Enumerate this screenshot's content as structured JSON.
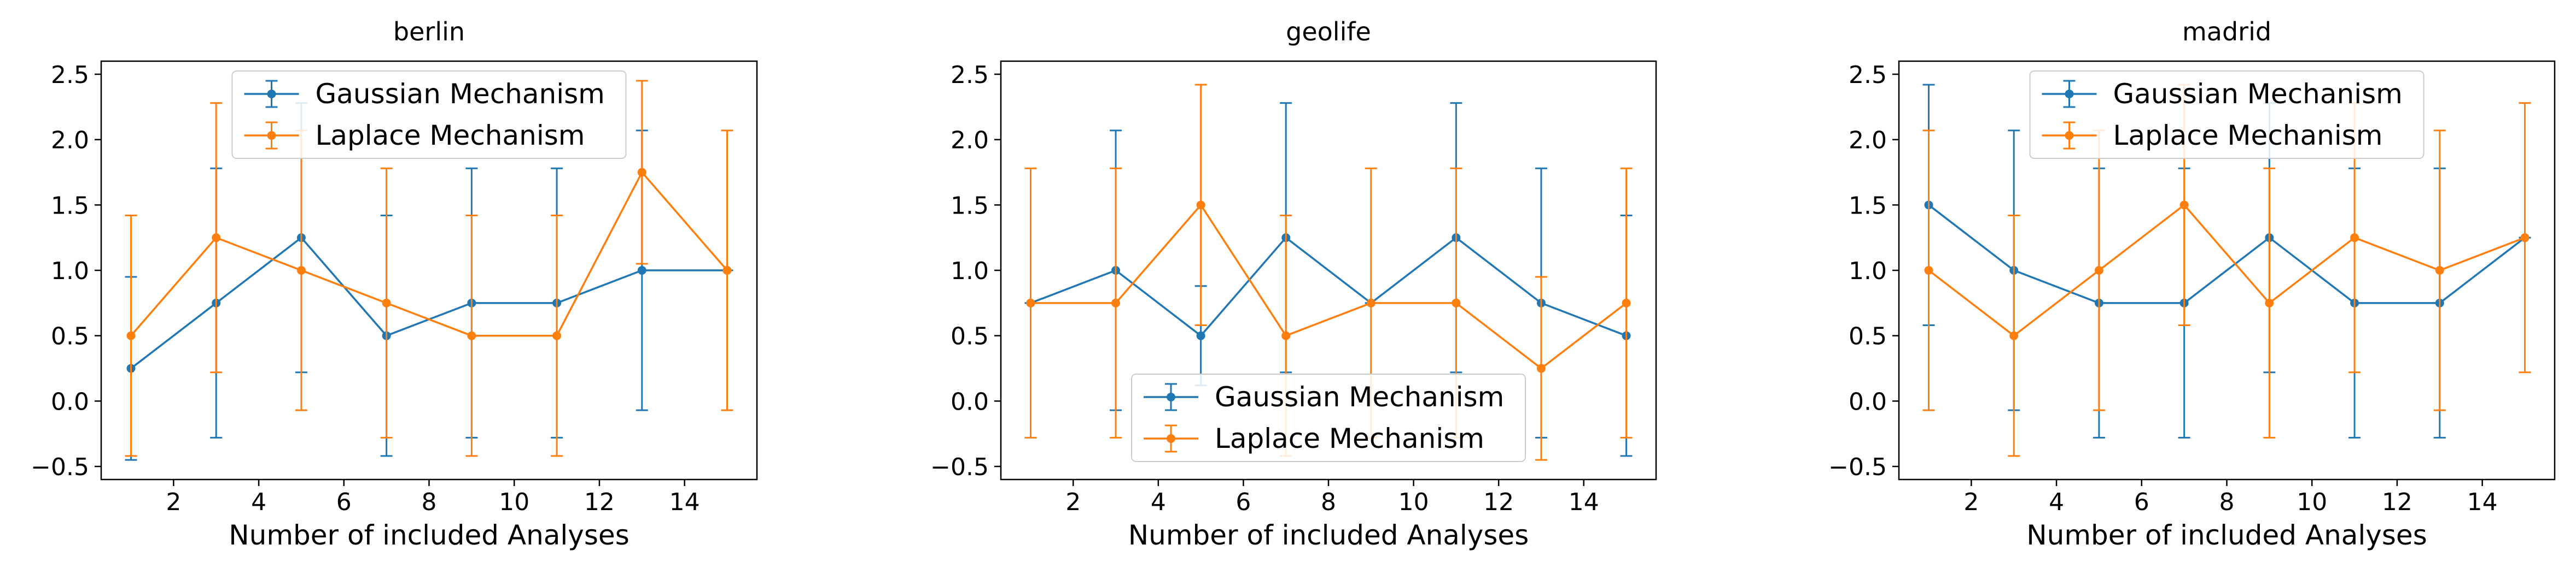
{
  "figure": {
    "series_names": [
      "Gaussian Mechanism",
      "Laplace Mechanism"
    ],
    "colors": [
      "#1f77b4",
      "#ff7f0e"
    ]
  },
  "chart_data": [
    {
      "type": "line",
      "title": "berlin",
      "xlabel": "Number of included Analyses",
      "ylabel": "",
      "x": [
        1,
        3,
        5,
        7,
        9,
        11,
        13,
        15
      ],
      "xlim": [
        0.3,
        15.7
      ],
      "ylim": [
        -0.6,
        2.6
      ],
      "xticks": [
        2,
        4,
        6,
        8,
        10,
        12,
        14
      ],
      "yticks": [
        -0.5,
        0.0,
        0.5,
        1.0,
        1.5,
        2.0,
        2.5
      ],
      "grid": false,
      "legend": "top-center",
      "series": [
        {
          "name": "Gaussian Mechanism",
          "color": "#1f77b4",
          "values": [
            0.25,
            0.75,
            1.25,
            0.5,
            0.75,
            0.75,
            1.0,
            1.0
          ],
          "errors": [
            0.7,
            1.03,
            1.03,
            0.92,
            1.03,
            1.03,
            1.07,
            0.0
          ]
        },
        {
          "name": "Laplace Mechanism",
          "color": "#ff7f0e",
          "values": [
            0.5,
            1.25,
            1.0,
            0.75,
            0.5,
            0.5,
            1.75,
            1.0
          ],
          "errors": [
            0.92,
            1.03,
            1.07,
            1.03,
            0.92,
            0.92,
            0.7,
            1.07
          ]
        }
      ]
    },
    {
      "type": "line",
      "title": "geolife",
      "xlabel": "Number of included Analyses",
      "ylabel": "",
      "x": [
        1,
        3,
        5,
        7,
        9,
        11,
        13,
        15
      ],
      "xlim": [
        0.3,
        15.7
      ],
      "ylim": [
        -0.6,
        2.6
      ],
      "xticks": [
        2,
        4,
        6,
        8,
        10,
        12,
        14
      ],
      "yticks": [
        -0.5,
        0.0,
        0.5,
        1.0,
        1.5,
        2.0,
        2.5
      ],
      "grid": false,
      "legend": "bottom-center",
      "series": [
        {
          "name": "Gaussian Mechanism",
          "color": "#1f77b4",
          "values": [
            0.75,
            1.0,
            0.5,
            1.25,
            0.75,
            1.25,
            0.75,
            0.5
          ],
          "errors": [
            0.0,
            1.07,
            0.38,
            1.03,
            0.0,
            1.03,
            1.03,
            0.92
          ]
        },
        {
          "name": "Laplace Mechanism",
          "color": "#ff7f0e",
          "values": [
            0.75,
            0.75,
            1.5,
            0.5,
            0.75,
            0.75,
            0.25,
            0.75
          ],
          "errors": [
            1.03,
            1.03,
            0.92,
            0.92,
            1.03,
            1.03,
            0.7,
            1.03
          ]
        }
      ]
    },
    {
      "type": "line",
      "title": "madrid",
      "xlabel": "Number of included Analyses",
      "ylabel": "",
      "x": [
        1,
        3,
        5,
        7,
        9,
        11,
        13,
        15
      ],
      "xlim": [
        0.3,
        15.7
      ],
      "ylim": [
        -0.6,
        2.6
      ],
      "xticks": [
        2,
        4,
        6,
        8,
        10,
        12,
        14
      ],
      "yticks": [
        -0.5,
        0.0,
        0.5,
        1.0,
        1.5,
        2.0,
        2.5
      ],
      "grid": false,
      "legend": "top-center",
      "series": [
        {
          "name": "Gaussian Mechanism",
          "color": "#1f77b4",
          "values": [
            1.5,
            1.0,
            0.75,
            0.75,
            1.25,
            0.75,
            0.75,
            1.25
          ],
          "errors": [
            0.92,
            1.07,
            1.03,
            1.03,
            1.03,
            1.03,
            1.03,
            0.0
          ]
        },
        {
          "name": "Laplace Mechanism",
          "color": "#ff7f0e",
          "values": [
            1.0,
            0.5,
            1.0,
            1.5,
            0.75,
            1.25,
            1.0,
            1.25
          ],
          "errors": [
            1.07,
            0.92,
            1.07,
            0.92,
            1.03,
            1.03,
            1.07,
            1.03
          ]
        }
      ]
    }
  ]
}
